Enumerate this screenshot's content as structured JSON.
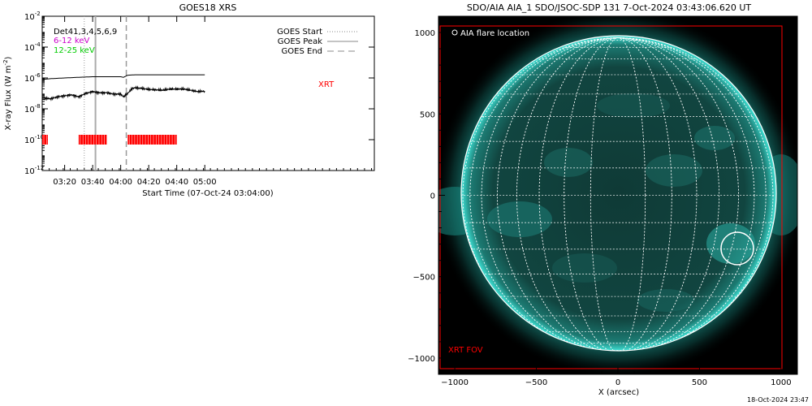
{
  "goes": {
    "title": "GOES18 XRS",
    "ylabel": "X-ray Flux (W m",
    "ylabel_sup": "-2",
    "ylabel_close": ")",
    "xlabel": "Start Time (07-Oct-24 03:04:00)",
    "legend_left": [
      {
        "text": "Det41,3,4,5,6,9",
        "color": "#000000"
      },
      {
        "text": "6-12 keV",
        "color": "#cc00cc"
      },
      {
        "text": "12-25 keV",
        "color": "#00cc00"
      }
    ],
    "legend_right": [
      "GOES Start",
      "GOES Peak",
      "GOES End"
    ],
    "xrt_label": "XRT",
    "xrt_color": "#ff0000"
  },
  "aia": {
    "title": "SDO/AIA AIA_1 SDO/JSOC-SDP 131  7-Oct-2024 03:43:06.620 UT",
    "legend": "AIA flare location",
    "fov_label": "XRT FOV",
    "xlabel": "X (arcsec)",
    "disk_color": "#0f3a36",
    "limb_color": "#2ec9bf"
  },
  "footer_stamp": "18-Oct-2024 23:47",
  "chart_data": [
    {
      "type": "line",
      "title": "GOES18 XRS",
      "xlabel": "Start Time (07-Oct-24 03:04:00)",
      "ylabel": "X-ray Flux (W m^-2)",
      "yscale": "log",
      "ylim": [
        1e-12,
        0.01
      ],
      "xlim_minutes": [
        64,
        301
      ],
      "x_ticks": [
        {
          "m": 80,
          "label": "03:20"
        },
        {
          "m": 100,
          "label": "03:40"
        },
        {
          "m": 120,
          "label": "04:00"
        },
        {
          "m": 140,
          "label": "04:20"
        },
        {
          "m": 160,
          "label": "04:40"
        },
        {
          "m": 180,
          "label": "05:00"
        }
      ],
      "y_ticks": [
        {
          "v": 1e-12,
          "label": "10",
          "exp": "-12"
        },
        {
          "v": 1e-10,
          "label": "10",
          "exp": "-10"
        },
        {
          "v": 1e-08,
          "label": "10",
          "exp": "-8"
        },
        {
          "v": 1e-06,
          "label": "10",
          "exp": "-6"
        },
        {
          "v": 0.0001,
          "label": "10",
          "exp": "-4"
        },
        {
          "v": 0.01,
          "label": "10",
          "exp": "-2"
        }
      ],
      "series": [
        {
          "name": "long",
          "x": [
            "03:04",
            "03:10",
            "03:20",
            "03:30",
            "03:40",
            "03:50",
            "04:00",
            "04:02",
            "04:05",
            "04:10",
            "04:20",
            "04:30",
            "04:40",
            "04:50",
            "05:00"
          ],
          "y": [
            8e-07,
            9e-07,
            1e-06,
            1.1e-06,
            1.2e-06,
            1.2e-06,
            1.2e-06,
            1.1e-06,
            1.5e-06,
            1.6e-06,
            1.6e-06,
            1.6e-06,
            1.6e-06,
            1.6e-06,
            1.6e-06
          ]
        },
        {
          "name": "short",
          "x": [
            "03:04",
            "03:10",
            "03:15",
            "03:20",
            "03:25",
            "03:30",
            "03:35",
            "03:40",
            "03:45",
            "03:50",
            "03:55",
            "04:00",
            "04:02",
            "04:05",
            "04:08",
            "04:10",
            "04:15",
            "04:20",
            "04:25",
            "04:30",
            "04:35",
            "04:40",
            "04:45",
            "04:50",
            "04:55",
            "05:00"
          ],
          "y": [
            5e-08,
            4.5e-08,
            6e-08,
            7e-08,
            8e-08,
            6e-08,
            1e-07,
            1.3e-07,
            1.1e-07,
            1.1e-07,
            9e-08,
            9e-08,
            6e-08,
            1e-07,
            2e-07,
            2.3e-07,
            2.1e-07,
            1.8e-07,
            1.7e-07,
            1.6e-07,
            1.9e-07,
            1.9e-07,
            1.9e-07,
            1.6e-07,
            1.3e-07,
            1.4e-07
          ]
        }
      ],
      "events": {
        "goes_start": "03:34",
        "goes_peak": "03:42",
        "goes_end": "04:04"
      },
      "xrt_coverage": [
        {
          "start": "03:04",
          "end": "03:08"
        },
        {
          "start": "03:30",
          "end": "03:50"
        },
        {
          "start": "04:05",
          "end": "04:40"
        }
      ],
      "xrt_level": 1e-10
    },
    {
      "type": "image",
      "title": "SDO/AIA AIA_1 SDO/JSOC-SDP 131  7-Oct-2024 03:43:06.620 UT",
      "xlabel": "X (arcsec)",
      "xlim": [
        -1100,
        1100
      ],
      "ylim": [
        -1100,
        1100
      ],
      "x_ticks": [
        -1000,
        -500,
        0,
        500,
        1000
      ],
      "y_ticks": [
        -1000,
        -500,
        0,
        500,
        1000
      ],
      "solar_radius_arcsec": 965,
      "flare_location": {
        "x": 740,
        "y": -340,
        "radius": 100
      },
      "xrt_fov": {
        "xmin": -1090,
        "xmax": 1000,
        "ymin": -1080,
        "ymax": 1030
      }
    }
  ]
}
